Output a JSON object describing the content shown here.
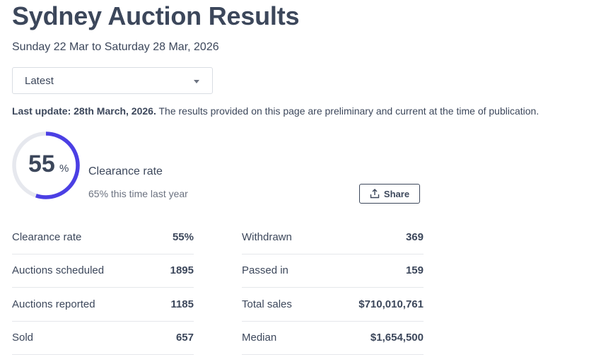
{
  "title": "Sydney Auction Results",
  "date_range": "Sunday 22 Mar to Saturday 28 Mar, 2026",
  "period_select": {
    "value": "Latest"
  },
  "update": {
    "bold": "Last update: 28th March, 2026.",
    "text": " The results provided on this page are preliminary and current at the time of publication."
  },
  "clearance": {
    "value": "55",
    "unit": "%",
    "fraction": 0.55,
    "label": "Clearance rate",
    "last_year": "65% this time last year",
    "ring_color": "#4b3fe4",
    "track_color": "#e6e8ee"
  },
  "share_label": "Share",
  "stats_left": [
    {
      "label": "Clearance rate",
      "value": "55%"
    },
    {
      "label": "Auctions scheduled",
      "value": "1895"
    },
    {
      "label": "Auctions reported",
      "value": "1185"
    },
    {
      "label": "Sold",
      "value": "657"
    }
  ],
  "stats_right": [
    {
      "label": "Withdrawn",
      "value": "369"
    },
    {
      "label": "Passed in",
      "value": "159"
    },
    {
      "label": "Total sales",
      "value": "$710,010,761"
    },
    {
      "label": "Median",
      "value": "$1,654,500"
    }
  ]
}
